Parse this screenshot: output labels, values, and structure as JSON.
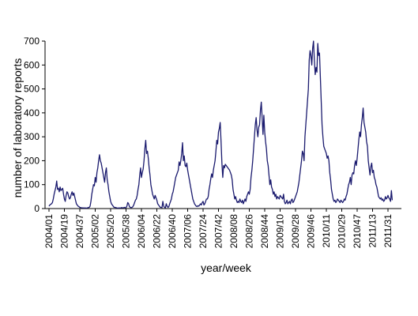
{
  "chart_data": {
    "type": "line",
    "xlabel": "year/week",
    "ylabel": "number of laboratory reports",
    "ylim": [
      0,
      700
    ],
    "yticks": [
      0,
      100,
      200,
      300,
      400,
      500,
      600,
      700
    ],
    "grid": false,
    "legend": "none",
    "line_color": "#1a1a6e",
    "x_tick_labels": [
      "2004/01",
      "2004/19",
      "2004/37",
      "2005/02",
      "2005/20",
      "2005/38",
      "2006/04",
      "2006/22",
      "2006/40",
      "2007/06",
      "2007/24",
      "2007/42",
      "2008/08",
      "2008/26",
      "2008/44",
      "2009/10",
      "2009/28",
      "2009/46",
      "2010/11",
      "2010/29",
      "2010/47",
      "2011/13",
      "2011/31"
    ],
    "weeks_per_tick": 18,
    "series": [
      {
        "name": "",
        "values": [
          10,
          15,
          18,
          20,
          25,
          40,
          60,
          75,
          90,
          115,
          80,
          85,
          70,
          90,
          75,
          80,
          85,
          60,
          40,
          30,
          55,
          70,
          65,
          50,
          40,
          45,
          60,
          70,
          55,
          65,
          50,
          35,
          20,
          15,
          10,
          8,
          5,
          4,
          3,
          3,
          3,
          2,
          3,
          2,
          2,
          3,
          4,
          5,
          10,
          30,
          60,
          80,
          100,
          95,
          130,
          110,
          150,
          170,
          200,
          225,
          200,
          190,
          170,
          150,
          130,
          110,
          150,
          170,
          120,
          100,
          70,
          50,
          30,
          20,
          15,
          10,
          5,
          5,
          4,
          3,
          2,
          2,
          3,
          2,
          3,
          4,
          3,
          3,
          5,
          3,
          4,
          10,
          25,
          20,
          8,
          5,
          4,
          5,
          8,
          15,
          25,
          35,
          40,
          55,
          80,
          100,
          140,
          170,
          130,
          150,
          165,
          200,
          250,
          285,
          230,
          240,
          210,
          170,
          140,
          100,
          80,
          60,
          50,
          40,
          55,
          45,
          35,
          20,
          15,
          10,
          5,
          5,
          4,
          30,
          10,
          5,
          3,
          20,
          10,
          5,
          8,
          20,
          30,
          40,
          60,
          70,
          90,
          110,
          130,
          140,
          150,
          160,
          195,
          180,
          200,
          230,
          275,
          200,
          220,
          180,
          175,
          190,
          160,
          140,
          120,
          100,
          80,
          60,
          40,
          30,
          20,
          15,
          10,
          8,
          12,
          10,
          15,
          20,
          15,
          25,
          30,
          15,
          20,
          30,
          40,
          40,
          50,
          80,
          100,
          125,
          145,
          130,
          160,
          180,
          200,
          240,
          285,
          270,
          320,
          335,
          360,
          280,
          190,
          130,
          180,
          170,
          185,
          180,
          175,
          170,
          165,
          160,
          150,
          140,
          120,
          80,
          60,
          40,
          50,
          35,
          25,
          30,
          25,
          40,
          30,
          25,
          35,
          20,
          30,
          40,
          30,
          50,
          60,
          70,
          60,
          80,
          130,
          160,
          200,
          250,
          300,
          350,
          380,
          330,
          300,
          340,
          350,
          410,
          445,
          380,
          310,
          390,
          320,
          280,
          250,
          200,
          180,
          140,
          100,
          120,
          90,
          80,
          60,
          70,
          50,
          60,
          40,
          50,
          45,
          40,
          55,
          50,
          45,
          40,
          60,
          30,
          20,
          25,
          35,
          20,
          25,
          30,
          20,
          35,
          40,
          25,
          30,
          40,
          50,
          60,
          70,
          90,
          110,
          140,
          170,
          200,
          240,
          230,
          200,
          300,
          350,
          400,
          450,
          500,
          620,
          660,
          640,
          600,
          670,
          700,
          620,
          560,
          590,
          570,
          690,
          640,
          650,
          550,
          450,
          350,
          300,
          260,
          250,
          240,
          230,
          210,
          220,
          200,
          150,
          120,
          80,
          60,
          40,
          30,
          35,
          25,
          30,
          40,
          35,
          30,
          25,
          35,
          30,
          25,
          30,
          40,
          35,
          50,
          60,
          80,
          100,
          110,
          130,
          100,
          140,
          150,
          145,
          180,
          200,
          180,
          210,
          250,
          290,
          320,
          300,
          350,
          380,
          420,
          360,
          340,
          320,
          280,
          260,
          200,
          170,
          140,
          175,
          190,
          150,
          160,
          130,
          120,
          100,
          90,
          70,
          50,
          45,
          40,
          45,
          35,
          40,
          30,
          35,
          50,
          40,
          45,
          55,
          45,
          40,
          30,
          75,
          35
        ]
      }
    ]
  }
}
